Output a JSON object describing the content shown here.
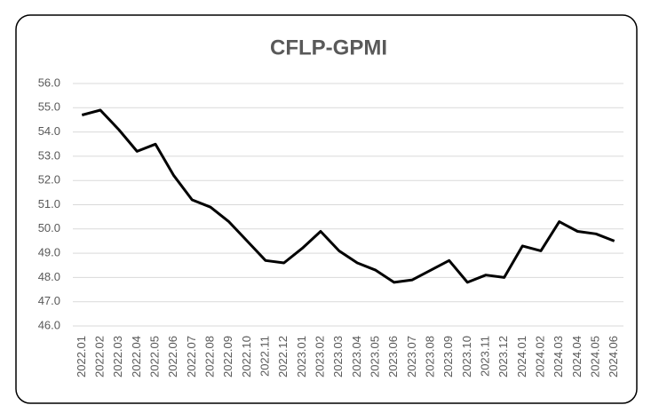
{
  "chart_data": {
    "type": "line",
    "title": "CFLP-GPMI",
    "categories": [
      "2022.01",
      "2022.02",
      "2022.03",
      "2022.04",
      "2022.05",
      "2022.06",
      "2022.07",
      "2022.08",
      "2022.09",
      "2022.10",
      "2022.11",
      "2022.12",
      "2023.01",
      "2023.02",
      "2023.03",
      "2023.04",
      "2023.05",
      "2023.06",
      "2023.07",
      "2023.08",
      "2023.09",
      "2023.10",
      "2023.11",
      "2023.12",
      "2024.01",
      "2024.02",
      "2024.03",
      "2024.04",
      "2024.05",
      "2024.06"
    ],
    "values": [
      54.7,
      54.9,
      54.1,
      53.2,
      53.5,
      52.2,
      51.2,
      50.9,
      50.3,
      49.5,
      48.7,
      48.6,
      49.2,
      49.9,
      49.1,
      48.6,
      48.3,
      47.8,
      47.9,
      48.3,
      48.7,
      47.8,
      48.1,
      48.0,
      49.3,
      49.1,
      50.3,
      49.9,
      49.8,
      49.5
    ],
    "color": "#000000",
    "ylim": [
      46,
      56
    ],
    "yticks": [
      {
        "value": 46,
        "label": "46.0"
      },
      {
        "value": 47,
        "label": "47.0"
      },
      {
        "value": 48,
        "label": "48.0"
      },
      {
        "value": 49,
        "label": "49.0"
      },
      {
        "value": 50,
        "label": "50.0"
      },
      {
        "value": 51,
        "label": "51.0"
      },
      {
        "value": 52,
        "label": "52.0"
      },
      {
        "value": 53,
        "label": "53.0"
      },
      {
        "value": 54,
        "label": "54.0"
      },
      {
        "value": 55,
        "label": "55.0"
      },
      {
        "value": 56,
        "label": "56.0"
      }
    ],
    "grid": true
  }
}
